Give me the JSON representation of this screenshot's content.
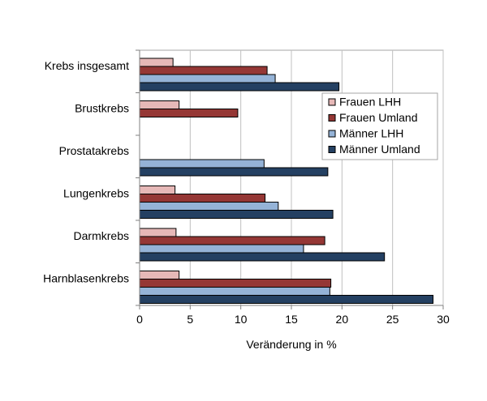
{
  "chart_data": {
    "type": "bar",
    "orientation": "horizontal",
    "title": "",
    "xlabel": "Veränderung in %",
    "ylabel": "",
    "xlim": [
      0,
      30
    ],
    "xticks": [
      0,
      5,
      10,
      15,
      20,
      25,
      30
    ],
    "grid": "vertical",
    "legend_position": "right",
    "categories": [
      "Krebs insgesamt",
      "Brustkrebs",
      "Prostatakrebs",
      "Lungenkrebs",
      "Darmkrebs",
      "Harnblasenkrebs"
    ],
    "series": [
      {
        "name": "Frauen LHH",
        "color": "#e6b8b7",
        "values": [
          3.3,
          3.9,
          null,
          3.5,
          3.6,
          3.9
        ]
      },
      {
        "name": "Frauen Umland",
        "color": "#953735",
        "values": [
          12.6,
          9.7,
          null,
          12.4,
          18.3,
          18.9
        ]
      },
      {
        "name": "Männer LHH",
        "color": "#95b3d7",
        "values": [
          13.4,
          null,
          12.3,
          13.7,
          16.2,
          18.8
        ]
      },
      {
        "name": "Männer Umland",
        "color": "#244062",
        "values": [
          19.7,
          null,
          18.6,
          19.1,
          24.2,
          29.0
        ]
      }
    ]
  }
}
